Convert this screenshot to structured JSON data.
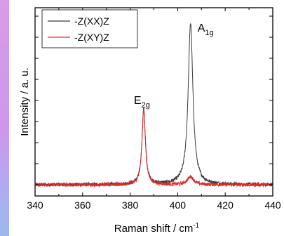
{
  "chart_data": {
    "type": "line",
    "xlabel": "Raman shift / cm",
    "xlabel_sup": "-1",
    "ylabel": "Intensity / a. u.",
    "xlim": [
      340,
      440
    ],
    "ylim": [
      0,
      1
    ],
    "x_ticks": [
      340,
      360,
      380,
      400,
      420,
      440
    ],
    "y_ticks_labeled": false,
    "grid": false,
    "legend_position": "top-left",
    "series": [
      {
        "name": "-Z(XX)Z",
        "color": "#3a3a3a",
        "peaks": [
          {
            "x": 385.7,
            "height": 0.47,
            "width": 0.85
          },
          {
            "x": 405.4,
            "height": 1.0,
            "width": 1.2
          }
        ]
      },
      {
        "name": "-Z(XY)Z",
        "color": "#e02828",
        "peaks": [
          {
            "x": 385.7,
            "height": 0.47,
            "width": 0.85
          },
          {
            "x": 405.4,
            "height": 0.05,
            "width": 1.6
          }
        ]
      }
    ],
    "annotations": [
      {
        "text": "E",
        "sub": "2g",
        "x": 385.7
      },
      {
        "text": "A",
        "sub": "1g",
        "x": 405.4
      }
    ]
  }
}
